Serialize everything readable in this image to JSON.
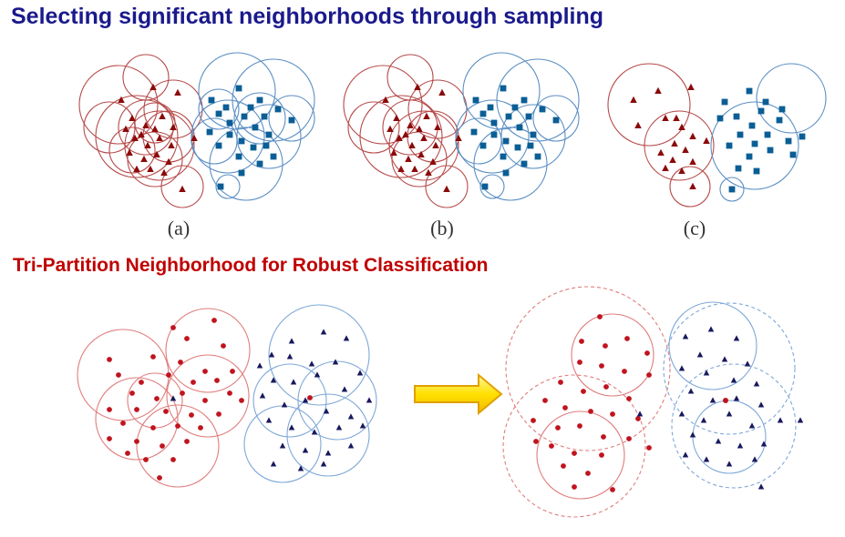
{
  "slide": {
    "title": "Selecting significant neighborhoods through sampling",
    "subtitle": "Tri-Partition Neighborhood for Robust Classification"
  },
  "panels": {
    "a": "(a)",
    "b": "(b)",
    "c": "(c)"
  },
  "colors": {
    "title": "#1a1a8c",
    "subtitle": "#c00000",
    "class1_point": "#8b0a0a",
    "class1_circle": "#b64a4a",
    "class2_point": "#0b5e95",
    "class2_circle": "#5b8fc4",
    "bottom_red_point": "#c0141e",
    "bottom_red_circle": "#e07d7d",
    "bottom_blue_point": "#18185e",
    "bottom_blue_circle": "#7ea8d8",
    "arrow_fill": "#ffe000",
    "arrow_stroke": "#e0a000"
  }
}
